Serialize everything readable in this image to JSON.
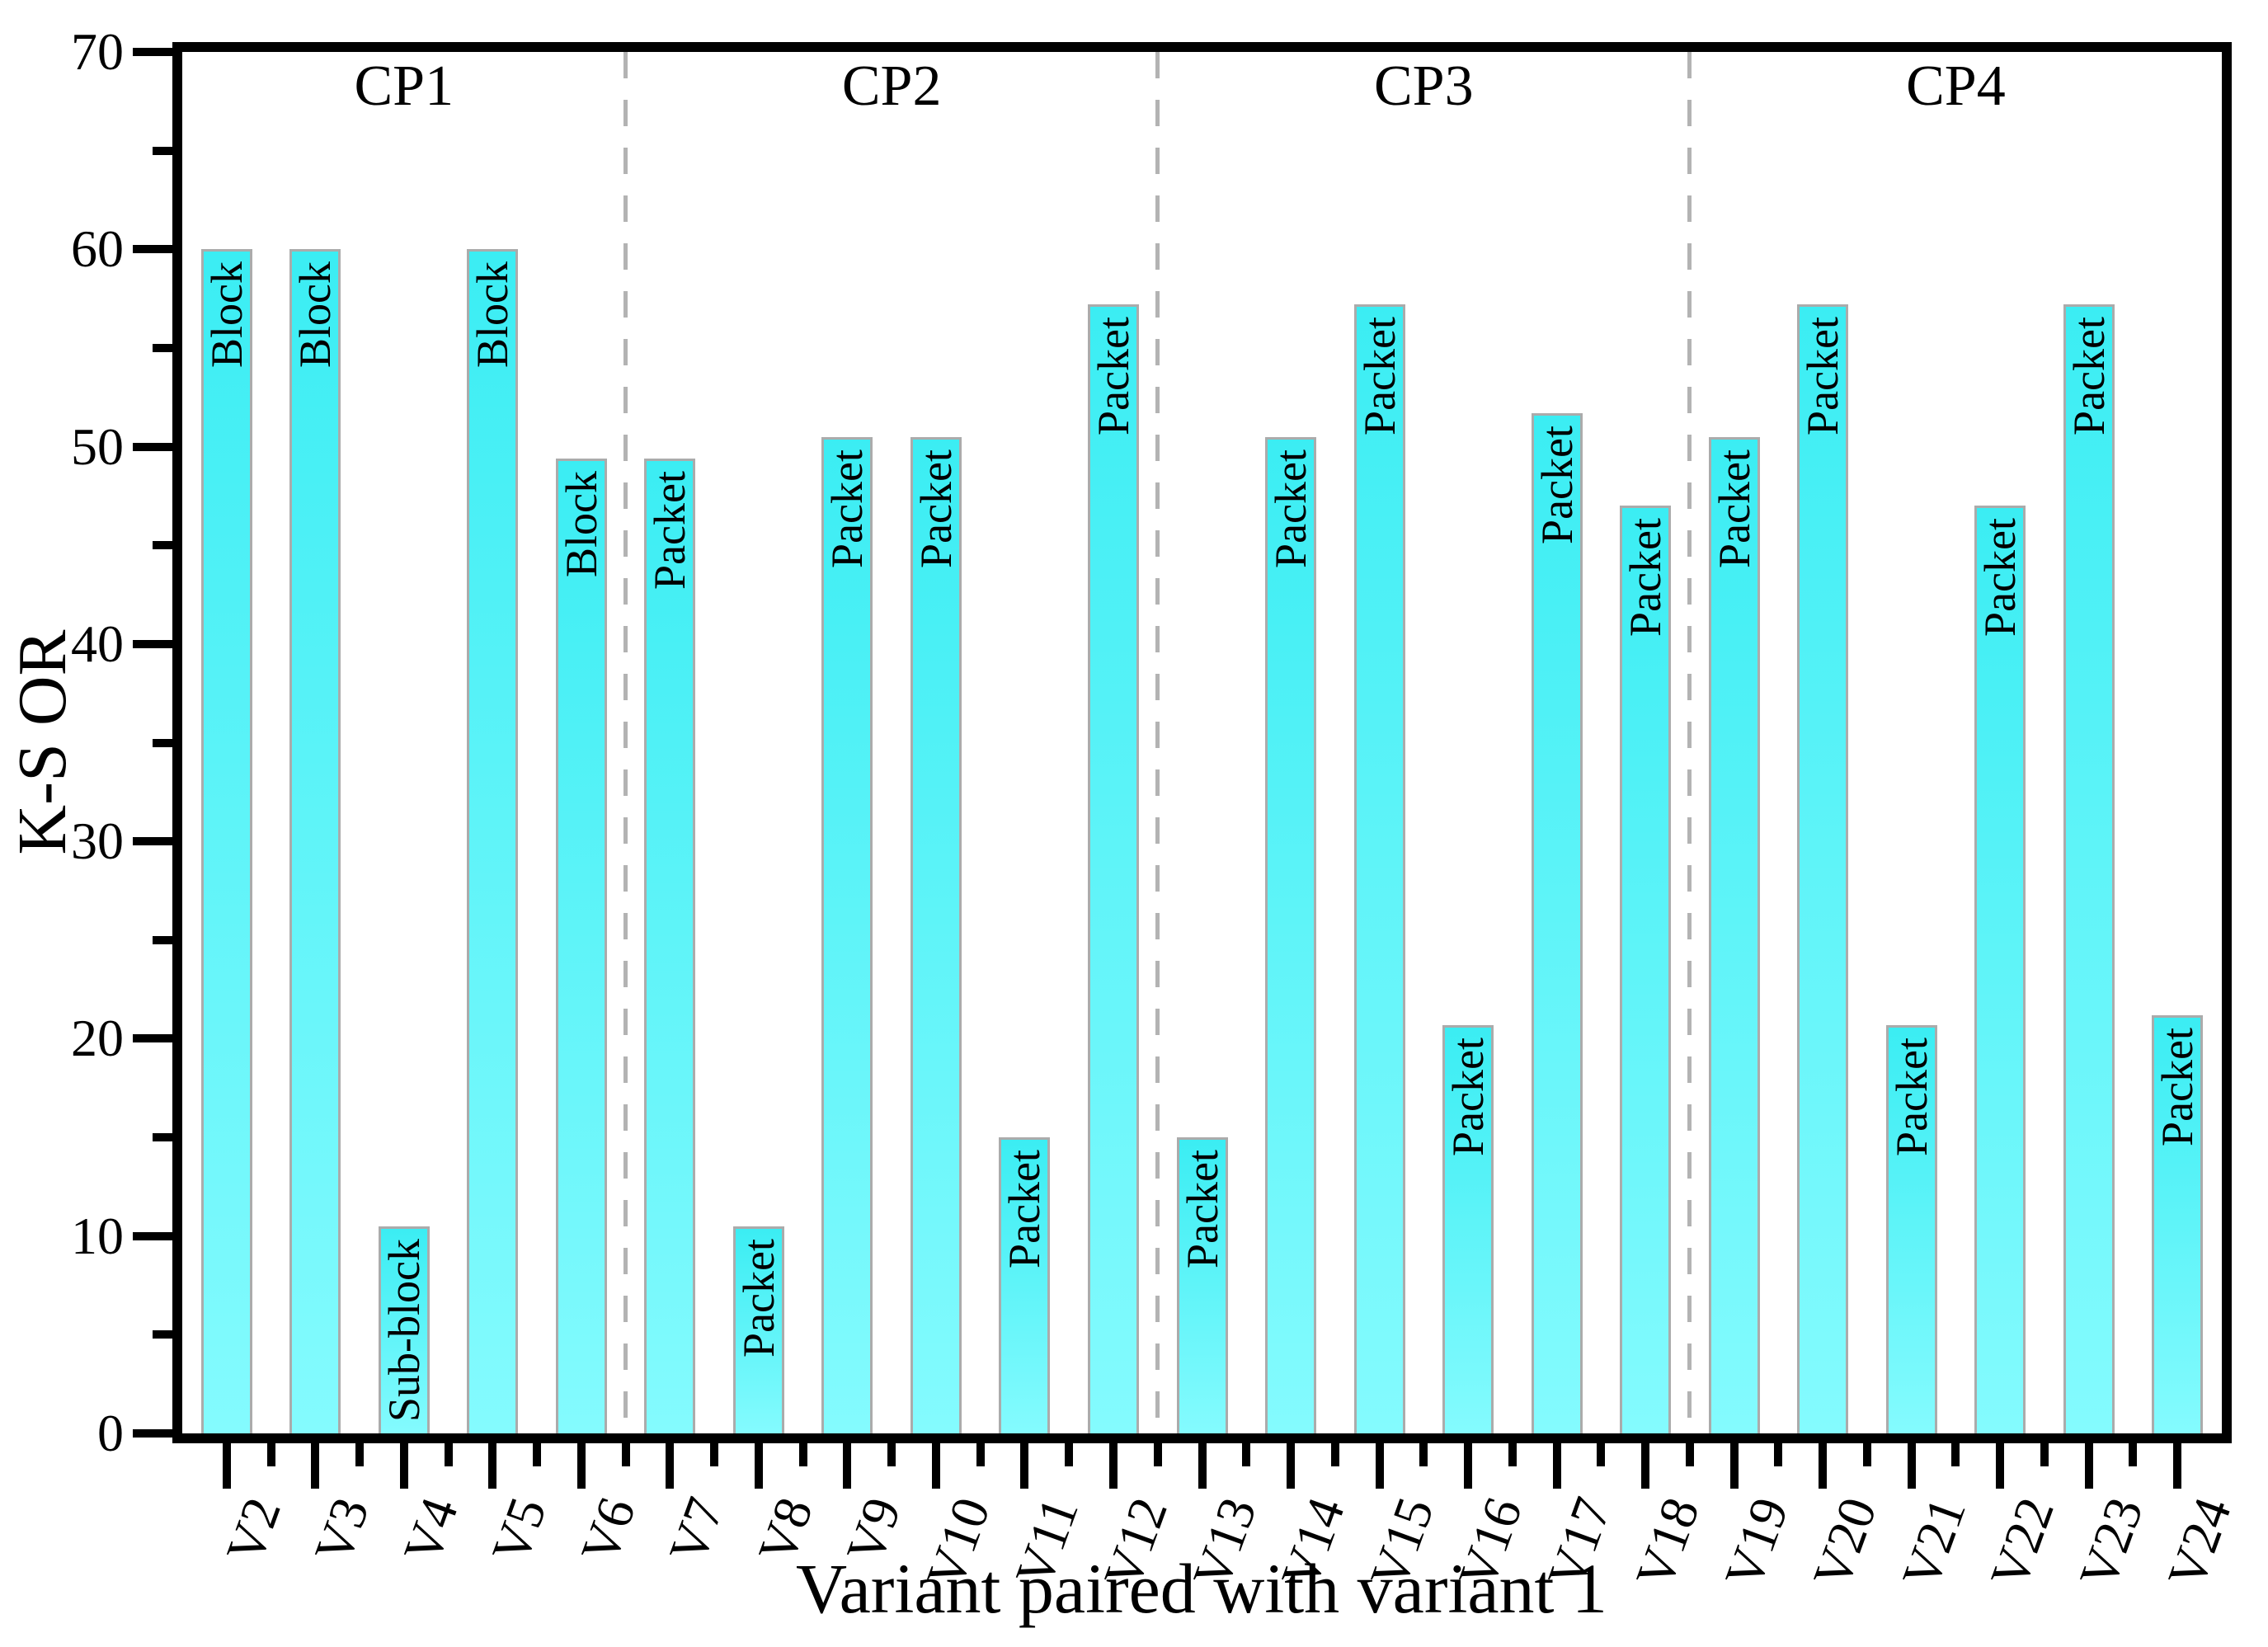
{
  "figure": {
    "y_axis_title": "K-S OR",
    "x_axis_title": "Variant paired with variant 1"
  },
  "chart_data": {
    "type": "bar",
    "title": "",
    "xlabel": "Variant paired with variant 1",
    "ylabel": "K-S OR",
    "ylim": [
      0,
      70
    ],
    "y_major_ticks": [
      0,
      10,
      20,
      30,
      40,
      50,
      60,
      70
    ],
    "y_minor_ticks": [
      5,
      15,
      25,
      35,
      45,
      55,
      65
    ],
    "grid": false,
    "legend": "none",
    "categories": [
      "V2",
      "V3",
      "V4",
      "V5",
      "V6",
      "V7",
      "V8",
      "V9",
      "V10",
      "V11",
      "V12",
      "V13",
      "V14",
      "V15",
      "V16",
      "V17",
      "V18",
      "V19",
      "V20",
      "V21",
      "V22",
      "V23",
      "V24"
    ],
    "values": [
      60,
      60,
      10.5,
      60,
      49.4,
      49.4,
      10.5,
      50.5,
      50.5,
      15.0,
      57.2,
      15.0,
      50.5,
      57.2,
      20.7,
      51.7,
      47.0,
      50.5,
      57.2,
      20.7,
      47.0,
      57.2,
      21.2
    ],
    "bar_labels": [
      "Block",
      "Block",
      "Sub-block",
      "Block",
      "Block",
      "Packet",
      "Packet",
      "Packet",
      "Packet",
      "Packet",
      "Packet",
      "Packet",
      "Packet",
      "Packet",
      "Packet",
      "Packet",
      "Packet",
      "Packet",
      "Packet",
      "Packet",
      "Packet",
      "Packet",
      "Packet"
    ],
    "groups": [
      {
        "label": "CP1",
        "start_index": 0,
        "end_index": 4
      },
      {
        "label": "CP2",
        "start_index": 5,
        "end_index": 10
      },
      {
        "label": "CP3",
        "start_index": 11,
        "end_index": 16
      },
      {
        "label": "CP4",
        "start_index": 17,
        "end_index": 22
      }
    ],
    "separators_after_index": [
      4,
      10,
      16
    ],
    "colors": {
      "bar_gradient_top": "#3BEDF3",
      "bar_gradient_bottom": "#84FBFE",
      "bar_border": "#ABABAB",
      "separator": "#B3B3B3",
      "axis": "#000000",
      "text": "#000000",
      "background": "#FFFFFF"
    }
  }
}
